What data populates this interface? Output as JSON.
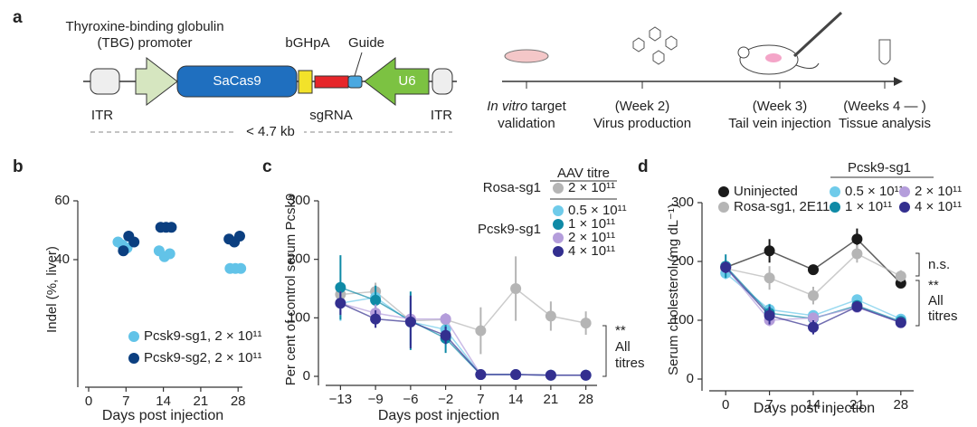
{
  "diagram": {
    "label": "a",
    "construct": {
      "promoter_line1": "Thyroxine-binding globulin",
      "promoter_line2": "(TBG) promoter",
      "polya": "bGHpA",
      "guide": "Guide",
      "cas9": "SaCas9",
      "u6": "U6",
      "itr_left": "ITR",
      "sgrna": "sgRNA",
      "itr_right": "ITR",
      "size": "< 4.7 kb"
    },
    "timeline": [
      {
        "line1_italic": "In vitro",
        "line1": " target",
        "line2": "validation"
      },
      {
        "line1": "(Week 2)",
        "line2": "Virus production"
      },
      {
        "line1": "(Week 3)",
        "line2": "Tail vein injection"
      },
      {
        "line1": "(Weeks 4 — )",
        "line2": "Tissue analysis"
      }
    ]
  },
  "chart_data": [
    {
      "type": "scatter",
      "label": "b",
      "xlabel": "Days post injection",
      "ylabel": "Indel (%, liver)",
      "xlim": [
        0,
        30
      ],
      "xticks": [
        0,
        7,
        14,
        21,
        28
      ],
      "ylim": [
        0,
        60
      ],
      "yticks": [
        40,
        60
      ],
      "series": [
        {
          "name": "Pcsk9-sg1, 2 × 10¹¹",
          "color": "#62c3e8",
          "x": [
            5.5,
            6.3,
            7.2,
            13.2,
            14.2,
            15.2,
            26.5,
            27.5,
            28.5
          ],
          "values": [
            46,
            45,
            44,
            43,
            41,
            42,
            37,
            37,
            37
          ]
        },
        {
          "name": "Pcsk9-sg2, 2 × 10¹¹",
          "color": "#0b3f80",
          "x": [
            6.5,
            7.5,
            8.5,
            13.5,
            14.5,
            15.5,
            26.3,
            27.3,
            28.3
          ],
          "values": [
            43,
            48,
            46,
            51,
            51,
            51,
            47,
            46,
            48
          ]
        }
      ]
    },
    {
      "type": "line",
      "label": "c",
      "xlabel": "Days post injection",
      "ylabel": "Per cent of control serum Pcsk9",
      "categories": [
        "−13",
        "−9",
        "−6",
        "−2",
        "7",
        "14",
        "21",
        "28"
      ],
      "ylim": [
        0,
        300
      ],
      "yticks": [
        0,
        100,
        200,
        300
      ],
      "legend_title": "AAV titre",
      "group_labels": [
        "Rosa-sg1",
        "Pcsk9-sg1"
      ],
      "annotations": [
        "**",
        "All",
        "titres"
      ],
      "series": [
        {
          "name": "2 × 10¹¹",
          "color": "#b5b5b5",
          "values": [
            140,
            145,
            95,
            97,
            78,
            150,
            103,
            91
          ],
          "errors": [
            20,
            15,
            10,
            10,
            40,
            55,
            25,
            20
          ]
        },
        {
          "name": "0.5 × 10¹¹",
          "color": "#6fcbea",
          "values": [
            125,
            135,
            93,
            80,
            3,
            3,
            2,
            2
          ],
          "errors": [
            30,
            20,
            40,
            15,
            3,
            3,
            2,
            2
          ]
        },
        {
          "name": "1 × 10¹¹",
          "color": "#0f8aa6",
          "values": [
            152,
            130,
            95,
            65,
            3,
            3,
            2,
            2
          ],
          "errors": [
            55,
            25,
            50,
            25,
            3,
            3,
            2,
            2
          ]
        },
        {
          "name": "2 × 10¹¹",
          "color": "#b49ddb",
          "values": [
            125,
            108,
            98,
            98,
            3,
            3,
            2,
            2
          ],
          "errors": [
            20,
            15,
            10,
            10,
            3,
            3,
            2,
            2
          ]
        },
        {
          "name": "4 × 10¹¹",
          "color": "#332f8f",
          "values": [
            125,
            98,
            93,
            70,
            3,
            3,
            2,
            2
          ],
          "errors": [
            20,
            15,
            45,
            15,
            3,
            3,
            2,
            2
          ]
        }
      ]
    },
    {
      "type": "line",
      "label": "d",
      "xlabel": "Days post injection",
      "ylabel": "Serum cholesterol (mg dL⁻¹)",
      "categories": [
        "0",
        "7",
        "14",
        "21",
        "28"
      ],
      "ylim": [
        0,
        300
      ],
      "yticks": [
        0,
        100,
        200,
        300
      ],
      "legend_title": "Pcsk9-sg1",
      "annotations": [
        "n.s.",
        "**",
        "All",
        "titres"
      ],
      "series": [
        {
          "name": "Uninjected",
          "color": "#1a1a1a",
          "values": [
            190,
            218,
            186,
            238,
            163
          ],
          "errors": [
            12,
            20,
            8,
            18,
            8
          ]
        },
        {
          "name": "Rosa-sg1, 2E11",
          "color": "#b5b5b5",
          "values": [
            188,
            172,
            142,
            213,
            175
          ],
          "errors": [
            10,
            20,
            15,
            15,
            10
          ]
        },
        {
          "name": "0.5 × 10¹¹",
          "color": "#6fcbea",
          "values": [
            180,
            118,
            108,
            135,
            102
          ],
          "errors": [
            10,
            10,
            8,
            8,
            6
          ]
        },
        {
          "name": "1 × 10¹¹",
          "color": "#0f8aa6",
          "values": [
            192,
            112,
            103,
            125,
            98
          ],
          "errors": [
            20,
            15,
            10,
            8,
            6
          ]
        },
        {
          "name": "2 × 10¹¹",
          "color": "#b49ddb",
          "values": [
            190,
            100,
            104,
            122,
            96
          ],
          "errors": [
            10,
            10,
            8,
            8,
            6
          ]
        },
        {
          "name": "4 × 10¹¹",
          "color": "#332f8f",
          "values": [
            190,
            108,
            88,
            123,
            96
          ],
          "errors": [
            10,
            15,
            12,
            8,
            6
          ]
        }
      ]
    }
  ]
}
